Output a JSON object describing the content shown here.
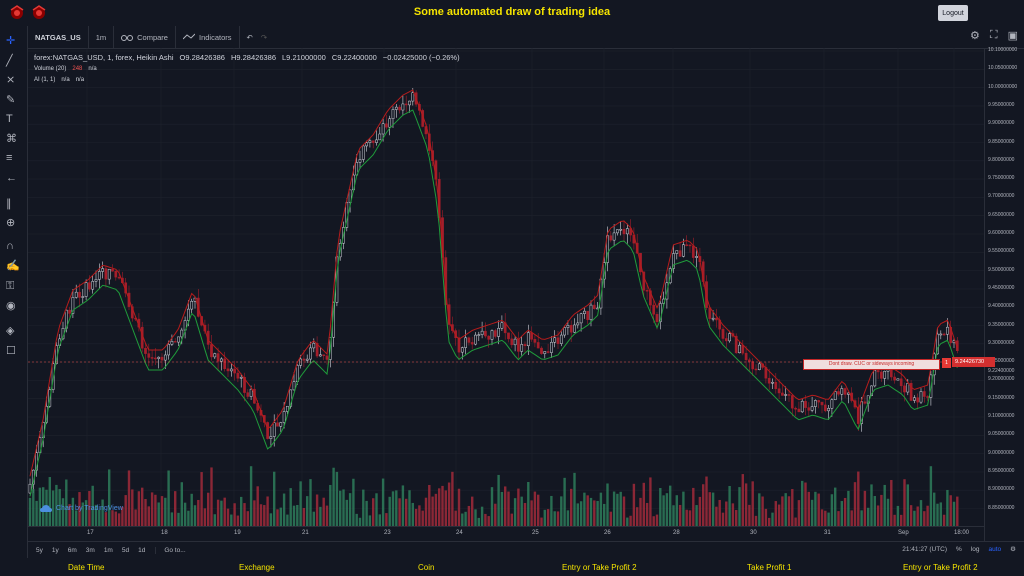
{
  "header": {
    "title": "Some automated draw of trading idea",
    "logout_label": "Logout"
  },
  "toolbar": {
    "symbol": "NATGAS_US",
    "interval": "1m",
    "compare_label": "Compare",
    "indicators_label": "Indicators"
  },
  "legend": {
    "title": "forex:NATGAS_USD, 1, forex, Heikin Ashi",
    "open": "O9.28426386",
    "high": "H9.28426386",
    "low": "L9.21000000",
    "close": "C9.22400000",
    "change": "−0.02425000 (−0.26%)",
    "volume_label": "Volume (20)",
    "volume_value": "248",
    "volume_na": "n/a",
    "ai_label": "AI (1, 1)",
    "ai_na1": "n/a",
    "ai_na2": "n/a"
  },
  "price_scale": {
    "ticks": [
      "10.10000000",
      "10.05000000",
      "10.00000000",
      "9.95000000",
      "9.90000000",
      "9.85000000",
      "9.80000000",
      "9.75000000",
      "9.70000000",
      "9.65000000",
      "9.60000000",
      "9.55000000",
      "9.50000000",
      "9.45000000",
      "9.40000000",
      "9.35000000",
      "9.30000000",
      "9.25000000",
      "9.20000000",
      "9.15000000",
      "9.10000000",
      "9.05000000",
      "9.00000000",
      "8.95000000",
      "8.90000000",
      "8.85000000"
    ],
    "last_price": "9.24426730",
    "current_price": "9.22400000"
  },
  "time_scale": {
    "labels": [
      "17",
      "18",
      "19",
      "21",
      "23",
      "24",
      "25",
      "26",
      "28",
      "30",
      "31",
      "Sep",
      "18:00"
    ]
  },
  "annotation": {
    "text": "Dont draw. CUC or sideways incoming",
    "marker": "1"
  },
  "watermark": {
    "text": "Chart by TradingView"
  },
  "bottombar": {
    "ranges": [
      "5y",
      "1y",
      "6m",
      "3m",
      "1m",
      "5d",
      "1d"
    ],
    "goto_label": "Go to...",
    "time": "21:41:27 (UTC)",
    "percent_label": "%",
    "log_label": "log",
    "auto_label": "auto"
  },
  "footer": {
    "labels": [
      "Date Time",
      "Exchange",
      "Coin",
      "Entry or Take Profit 2",
      "Take Profit 1",
      "Entry or Take Profit 2"
    ]
  },
  "colors": {
    "up": "#d1d4dc",
    "down": "#a51e2b",
    "vol_up": "#2e7d5b",
    "vol_down": "#a12a3a",
    "ma_green": "#1f9c3b",
    "ma_red": "#b71c1c",
    "accent": "#f5e400",
    "background": "#131722"
  },
  "icons": [
    "crosshair-icon",
    "trend-line-icon",
    "fib-icon",
    "brush-icon",
    "text-icon",
    "pattern-icon",
    "measure-icon",
    "back-arrow-icon",
    "ruler-icon",
    "zoom-icon",
    "magnet-icon",
    "lock-draw-icon",
    "lock-icon",
    "eye-icon",
    "layers-icon",
    "trash-icon"
  ]
}
